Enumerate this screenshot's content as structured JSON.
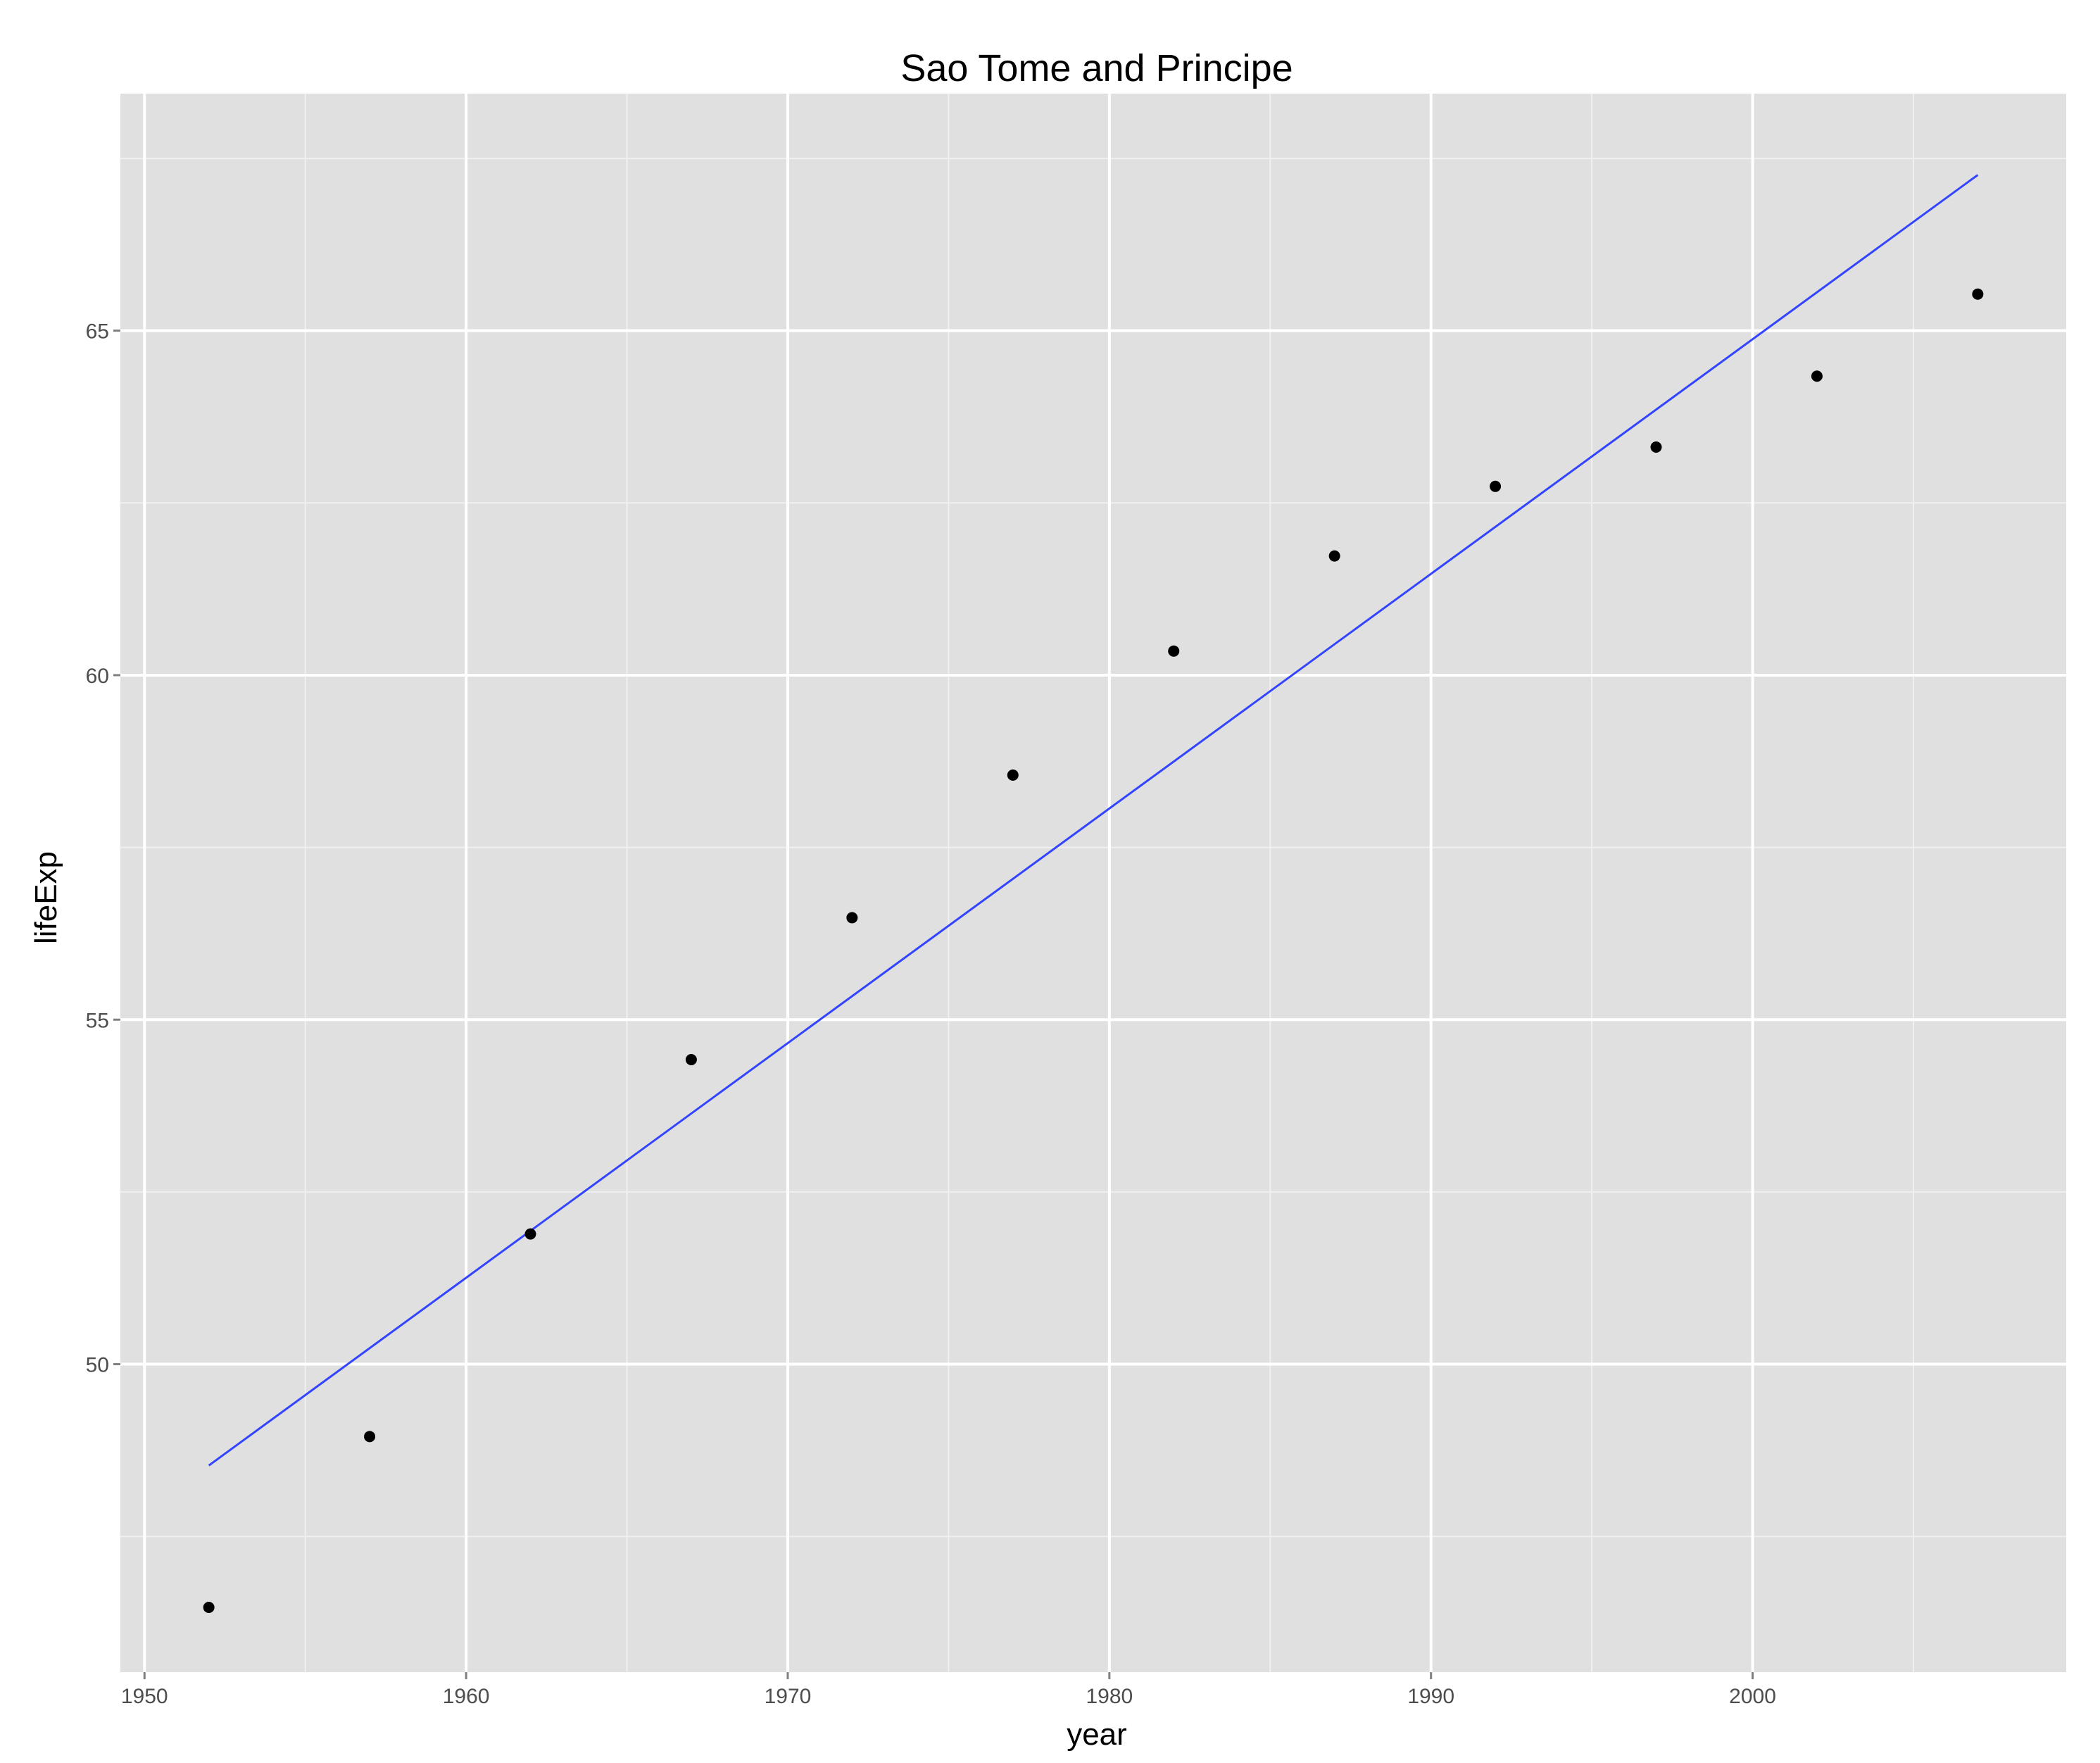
{
  "chart_data": {
    "type": "scatter",
    "title": "Sao Tome and Principe",
    "xlabel": "year",
    "ylabel": "lifeExp",
    "xlim": [
      1949.25,
      2009.75
    ],
    "ylim": [
      45.53,
      68.44
    ],
    "x_ticks": [
      1950,
      1960,
      1970,
      1980,
      1990,
      2000
    ],
    "x_minor_ticks": [
      1955,
      1965,
      1975,
      1985,
      1995,
      2005
    ],
    "y_ticks": [
      50,
      55,
      60,
      65
    ],
    "y_minor_ticks": [
      47.5,
      52.5,
      57.5,
      62.5,
      67.5
    ],
    "grid": true,
    "legend": "none",
    "series": [
      {
        "kind": "points",
        "x": [
          1952,
          1957,
          1962,
          1967,
          1972,
          1977,
          1982,
          1987,
          1992,
          1997,
          2002,
          2007
        ],
        "y": [
          46.47,
          48.95,
          51.89,
          54.42,
          56.48,
          58.55,
          60.35,
          61.73,
          62.74,
          63.31,
          64.34,
          65.53
        ],
        "color": "#000000"
      },
      {
        "kind": "trend-line",
        "x": [
          1952,
          2007
        ],
        "y": [
          48.53,
          67.26
        ],
        "color": "#3344ff"
      }
    ],
    "colors": {
      "panel_background": "#e0e0e0",
      "grid_major": "#ffffff",
      "grid_minor": "#f0f0f0",
      "tick_mark": "#7f7f7f"
    }
  }
}
